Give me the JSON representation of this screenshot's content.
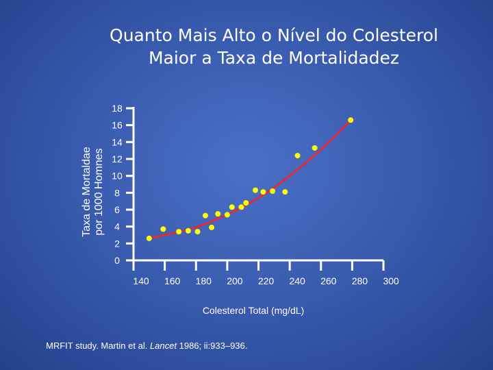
{
  "chart_data": {
    "type": "scatter",
    "title_line1": "Quanto Mais Alto o Nível do Colesterol",
    "title_line2": "Maior a Taxa de Mortalidadez",
    "ylabel_line1": "Taxa de Mortaldae",
    "ylabel_line2": "por 1000 Homnes",
    "xlabel": "Colesterol Total (mg/dL)",
    "xlim": [
      140,
      300
    ],
    "ylim": [
      0,
      18
    ],
    "x_ticks": [
      140,
      160,
      180,
      200,
      220,
      240,
      260,
      280,
      300
    ],
    "y_ticks": [
      0,
      2,
      4,
      6,
      8,
      10,
      12,
      14,
      16,
      18
    ],
    "grid": false,
    "points": [
      {
        "x": 150,
        "y": 2.6
      },
      {
        "x": 159,
        "y": 3.7
      },
      {
        "x": 169,
        "y": 3.4
      },
      {
        "x": 175,
        "y": 3.5
      },
      {
        "x": 181,
        "y": 3.4
      },
      {
        "x": 186,
        "y": 5.3
      },
      {
        "x": 190,
        "y": 3.9
      },
      {
        "x": 194,
        "y": 5.5
      },
      {
        "x": 200,
        "y": 5.4
      },
      {
        "x": 203,
        "y": 6.3
      },
      {
        "x": 209,
        "y": 6.3
      },
      {
        "x": 212,
        "y": 6.8
      },
      {
        "x": 218,
        "y": 8.3
      },
      {
        "x": 223,
        "y": 8.1
      },
      {
        "x": 229,
        "y": 8.2
      },
      {
        "x": 237,
        "y": 8.1
      },
      {
        "x": 245,
        "y": 12.4
      },
      {
        "x": 256,
        "y": 13.3
      },
      {
        "x": 279,
        "y": 16.6
      }
    ],
    "trend_line": {
      "x": [
        150,
        160,
        170,
        180,
        190,
        200,
        210,
        220,
        230,
        240,
        250,
        260,
        270,
        280
      ],
      "y": [
        2.6,
        3.0,
        3.4,
        3.9,
        4.6,
        5.4,
        6.3,
        7.4,
        8.6,
        10.0,
        11.5,
        13.1,
        14.9,
        16.8
      ]
    },
    "colors": {
      "point": "#ffff00",
      "trend": "#ff2020",
      "axis": "#ffffff"
    }
  },
  "footnote": {
    "prefix": "MRFIT study. Martin et al. ",
    "journal": "Lancet",
    "suffix": " 1986; ii:933–936."
  }
}
